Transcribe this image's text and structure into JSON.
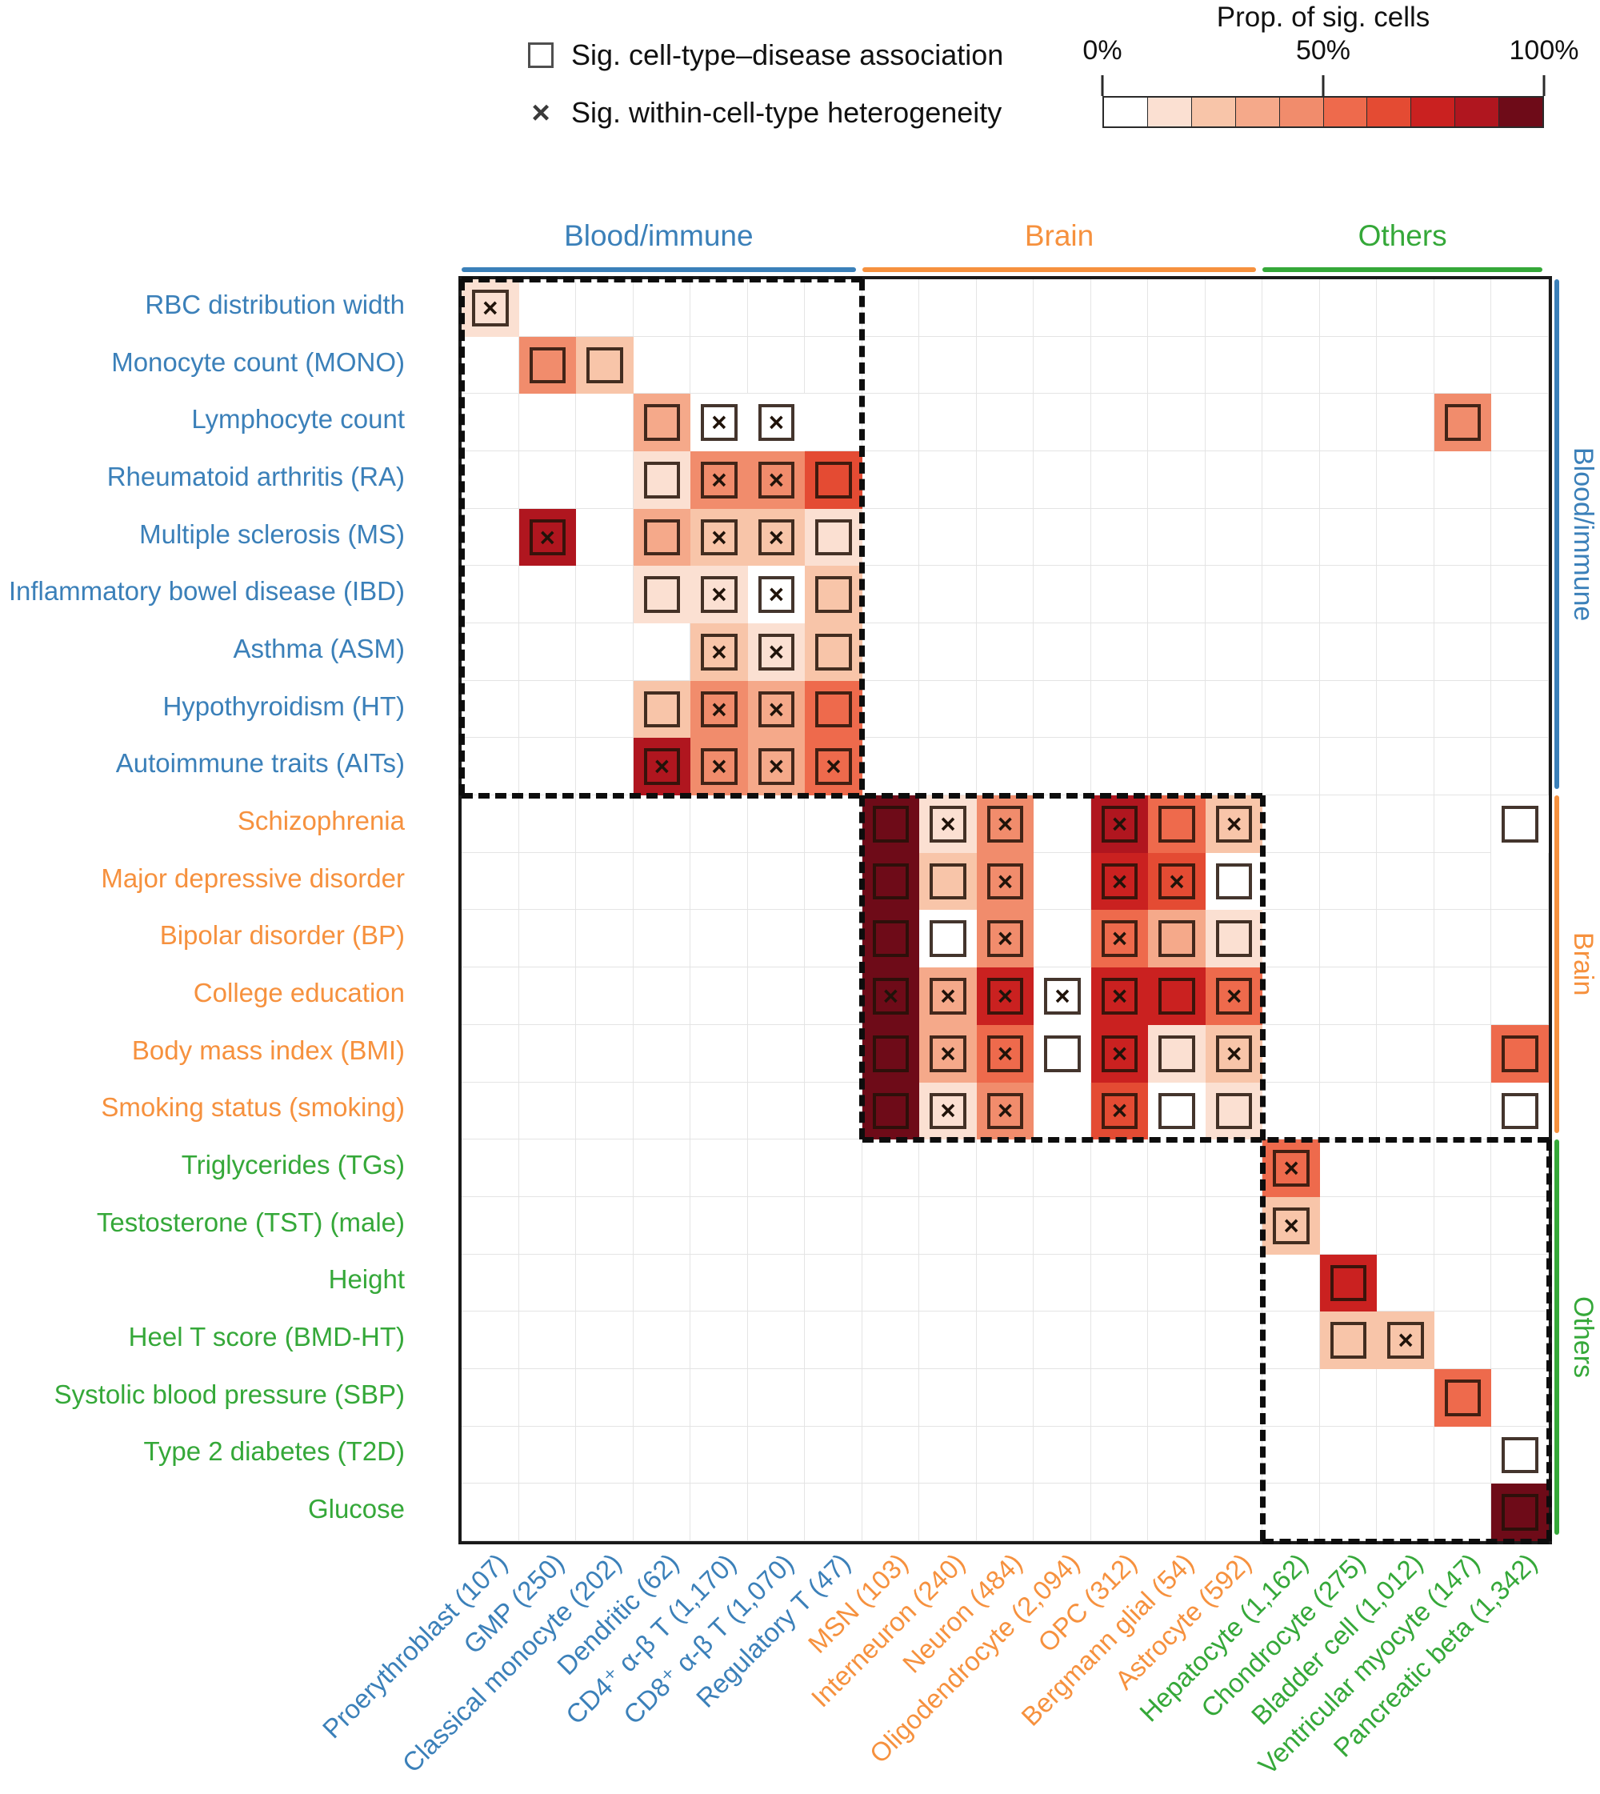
{
  "legend": {
    "square_symbol": "□",
    "cross_symbol": "×",
    "assoc_label": "Sig. cell-type–disease association",
    "het_label": "Sig. within-cell-type heterogeneity"
  },
  "colorbar": {
    "title": "Prop. of sig. cells",
    "tick_labels": [
      "0%",
      "50%",
      "100%"
    ],
    "tick_positions": [
      0,
      50,
      100
    ],
    "palette": [
      "#ffffff",
      "#fbe0d2",
      "#f8c5a9",
      "#f5a98a",
      "#f18c6c",
      "#ee6a4c",
      "#e44b33",
      "#ca2120",
      "#b0161f",
      "#6e0b18"
    ]
  },
  "groups": {
    "blood": {
      "label": "Blood/immune",
      "color": "#3b80b9"
    },
    "brain": {
      "label": "Brain",
      "color": "#f6913e"
    },
    "others": {
      "label": "Others",
      "color": "#35a839"
    }
  },
  "chart_data": {
    "type": "heatmap",
    "value_meaning": "Proportion of significant cells (%), square = significant cell-type-disease association, x = significant within-cell-type heterogeneity",
    "rows": [
      {
        "label": "RBC distribution width",
        "group": "blood"
      },
      {
        "label": "Monocyte count (MONO)",
        "group": "blood"
      },
      {
        "label": "Lymphocyte count",
        "group": "blood"
      },
      {
        "label": "Rheumatoid arthritis (RA)",
        "group": "blood"
      },
      {
        "label": "Multiple sclerosis (MS)",
        "group": "blood"
      },
      {
        "label": "Inflammatory bowel disease (IBD)",
        "group": "blood"
      },
      {
        "label": "Asthma (ASM)",
        "group": "blood"
      },
      {
        "label": "Hypothyroidism (HT)",
        "group": "blood"
      },
      {
        "label": "Autoimmune traits (AITs)",
        "group": "blood"
      },
      {
        "label": "Schizophrenia",
        "group": "brain"
      },
      {
        "label": "Major depressive disorder",
        "group": "brain"
      },
      {
        "label": "Bipolar disorder (BP)",
        "group": "brain"
      },
      {
        "label": "College education",
        "group": "brain"
      },
      {
        "label": "Body mass index (BMI)",
        "group": "brain"
      },
      {
        "label": "Smoking status (smoking)",
        "group": "brain"
      },
      {
        "label": "Triglycerides (TGs)",
        "group": "others"
      },
      {
        "label": "Testosterone (TST) (male)",
        "group": "others"
      },
      {
        "label": "Height",
        "group": "others"
      },
      {
        "label": "Heel T score (BMD-HT)",
        "group": "others"
      },
      {
        "label": "Systolic blood pressure (SBP)",
        "group": "others"
      },
      {
        "label": "Type 2 diabetes (T2D)",
        "group": "others"
      },
      {
        "label": "Glucose",
        "group": "others"
      }
    ],
    "cols": [
      {
        "label": "Proerythroblast (107)",
        "group": "blood"
      },
      {
        "label": "GMP (250)",
        "group": "blood"
      },
      {
        "label": "Classical monocyte (202)",
        "group": "blood"
      },
      {
        "label": "Dendritic (62)",
        "group": "blood"
      },
      {
        "label": "CD4⁺ α-β T (1,170)",
        "group": "blood"
      },
      {
        "label": "CD8⁺ α-β T (1,070)",
        "group": "blood"
      },
      {
        "label": "Regulatory T (47)",
        "group": "blood"
      },
      {
        "label": "MSN (103)",
        "group": "brain"
      },
      {
        "label": "Interneuron (240)",
        "group": "brain"
      },
      {
        "label": "Neuron (484)",
        "group": "brain"
      },
      {
        "label": "Oligodendrocyte (2,094)",
        "group": "brain"
      },
      {
        "label": "OPC (312)",
        "group": "brain"
      },
      {
        "label": "Bergmann glial (54)",
        "group": "brain"
      },
      {
        "label": "Astrocyte (592)",
        "group": "brain"
      },
      {
        "label": "Hepatocyte (1,162)",
        "group": "others"
      },
      {
        "label": "Chondrocyte (275)",
        "group": "others"
      },
      {
        "label": "Bladder cell (1,012)",
        "group": "others"
      },
      {
        "label": "Ventricular myocyte (147)",
        "group": "others"
      },
      {
        "label": "Pancreatic beta (1,342)",
        "group": "others"
      }
    ],
    "cells": [
      {
        "r": 0,
        "c": 0,
        "p": 15,
        "sq": true,
        "x": true
      },
      {
        "r": 1,
        "c": 1,
        "p": 45,
        "sq": true
      },
      {
        "r": 1,
        "c": 2,
        "p": 25,
        "sq": true
      },
      {
        "r": 2,
        "c": 3,
        "p": 35,
        "sq": true
      },
      {
        "r": 2,
        "c": 4,
        "p": 5,
        "sq": true,
        "x": true
      },
      {
        "r": 2,
        "c": 5,
        "p": 5,
        "sq": true,
        "x": true
      },
      {
        "r": 2,
        "c": 17,
        "p": 45,
        "sq": true
      },
      {
        "r": 3,
        "c": 3,
        "p": 15,
        "sq": true
      },
      {
        "r": 3,
        "c": 4,
        "p": 45,
        "sq": true,
        "x": true
      },
      {
        "r": 3,
        "c": 5,
        "p": 45,
        "sq": true,
        "x": true
      },
      {
        "r": 3,
        "c": 6,
        "p": 65,
        "sq": true
      },
      {
        "r": 4,
        "c": 1,
        "p": 85,
        "sq": true,
        "x": true
      },
      {
        "r": 4,
        "c": 3,
        "p": 35,
        "sq": true
      },
      {
        "r": 4,
        "c": 4,
        "p": 25,
        "sq": true,
        "x": true
      },
      {
        "r": 4,
        "c": 5,
        "p": 25,
        "sq": true,
        "x": true
      },
      {
        "r": 4,
        "c": 6,
        "p": 15,
        "sq": true
      },
      {
        "r": 5,
        "c": 3,
        "p": 15,
        "sq": true
      },
      {
        "r": 5,
        "c": 4,
        "p": 15,
        "sq": true,
        "x": true
      },
      {
        "r": 5,
        "c": 5,
        "p": 5,
        "sq": true,
        "x": true
      },
      {
        "r": 5,
        "c": 6,
        "p": 25,
        "sq": true
      },
      {
        "r": 6,
        "c": 4,
        "p": 25,
        "sq": true,
        "x": true
      },
      {
        "r": 6,
        "c": 5,
        "p": 15,
        "sq": true,
        "x": true
      },
      {
        "r": 6,
        "c": 6,
        "p": 25,
        "sq": true
      },
      {
        "r": 7,
        "c": 3,
        "p": 25,
        "sq": true
      },
      {
        "r": 7,
        "c": 4,
        "p": 45,
        "sq": true,
        "x": true
      },
      {
        "r": 7,
        "c": 5,
        "p": 35,
        "sq": true,
        "x": true
      },
      {
        "r": 7,
        "c": 6,
        "p": 55,
        "sq": true
      },
      {
        "r": 8,
        "c": 3,
        "p": 85,
        "sq": true,
        "x": true
      },
      {
        "r": 8,
        "c": 4,
        "p": 45,
        "sq": true,
        "x": true
      },
      {
        "r": 8,
        "c": 5,
        "p": 35,
        "sq": true,
        "x": true
      },
      {
        "r": 8,
        "c": 6,
        "p": 55,
        "sq": true,
        "x": true
      },
      {
        "r": 9,
        "c": 7,
        "p": 95,
        "sq": true
      },
      {
        "r": 9,
        "c": 8,
        "p": 15,
        "sq": true,
        "x": true
      },
      {
        "r": 9,
        "c": 9,
        "p": 45,
        "sq": true,
        "x": true
      },
      {
        "r": 9,
        "c": 11,
        "p": 85,
        "sq": true,
        "x": true
      },
      {
        "r": 9,
        "c": 12,
        "p": 55,
        "sq": true
      },
      {
        "r": 9,
        "c": 13,
        "p": 25,
        "sq": true,
        "x": true
      },
      {
        "r": 9,
        "c": 18,
        "p": 5,
        "sq": true
      },
      {
        "r": 10,
        "c": 7,
        "p": 95,
        "sq": true
      },
      {
        "r": 10,
        "c": 8,
        "p": 25,
        "sq": true
      },
      {
        "r": 10,
        "c": 9,
        "p": 45,
        "sq": true,
        "x": true
      },
      {
        "r": 10,
        "c": 11,
        "p": 75,
        "sq": true,
        "x": true
      },
      {
        "r": 10,
        "c": 12,
        "p": 65,
        "sq": true,
        "x": true
      },
      {
        "r": 10,
        "c": 13,
        "p": 5,
        "sq": true
      },
      {
        "r": 11,
        "c": 7,
        "p": 95,
        "sq": true
      },
      {
        "r": 11,
        "c": 8,
        "p": 5,
        "sq": true
      },
      {
        "r": 11,
        "c": 9,
        "p": 45,
        "sq": true,
        "x": true
      },
      {
        "r": 11,
        "c": 11,
        "p": 55,
        "sq": true,
        "x": true
      },
      {
        "r": 11,
        "c": 12,
        "p": 35,
        "sq": true
      },
      {
        "r": 11,
        "c": 13,
        "p": 15,
        "sq": true
      },
      {
        "r": 12,
        "c": 7,
        "p": 95,
        "sq": true,
        "x": true
      },
      {
        "r": 12,
        "c": 8,
        "p": 35,
        "sq": true,
        "x": true
      },
      {
        "r": 12,
        "c": 9,
        "p": 75,
        "sq": true,
        "x": true
      },
      {
        "r": 12,
        "c": 10,
        "p": 5,
        "sq": true,
        "x": true
      },
      {
        "r": 12,
        "c": 11,
        "p": 75,
        "sq": true,
        "x": true
      },
      {
        "r": 12,
        "c": 12,
        "p": 75,
        "sq": true
      },
      {
        "r": 12,
        "c": 13,
        "p": 55,
        "sq": true,
        "x": true
      },
      {
        "r": 13,
        "c": 7,
        "p": 95,
        "sq": true
      },
      {
        "r": 13,
        "c": 8,
        "p": 35,
        "sq": true,
        "x": true
      },
      {
        "r": 13,
        "c": 9,
        "p": 55,
        "sq": true,
        "x": true
      },
      {
        "r": 13,
        "c": 10,
        "p": 5,
        "sq": true
      },
      {
        "r": 13,
        "c": 11,
        "p": 75,
        "sq": true,
        "x": true
      },
      {
        "r": 13,
        "c": 12,
        "p": 15,
        "sq": true
      },
      {
        "r": 13,
        "c": 13,
        "p": 25,
        "sq": true,
        "x": true
      },
      {
        "r": 13,
        "c": 18,
        "p": 55,
        "sq": true
      },
      {
        "r": 14,
        "c": 7,
        "p": 95,
        "sq": true
      },
      {
        "r": 14,
        "c": 8,
        "p": 15,
        "sq": true,
        "x": true
      },
      {
        "r": 14,
        "c": 9,
        "p": 45,
        "sq": true,
        "x": true
      },
      {
        "r": 14,
        "c": 11,
        "p": 65,
        "sq": true,
        "x": true
      },
      {
        "r": 14,
        "c": 12,
        "p": 5,
        "sq": true
      },
      {
        "r": 14,
        "c": 13,
        "p": 15,
        "sq": true
      },
      {
        "r": 14,
        "c": 18,
        "p": 5,
        "sq": true
      },
      {
        "r": 15,
        "c": 14,
        "p": 55,
        "sq": true,
        "x": true
      },
      {
        "r": 16,
        "c": 14,
        "p": 25,
        "sq": true,
        "x": true
      },
      {
        "r": 17,
        "c": 15,
        "p": 75,
        "sq": true
      },
      {
        "r": 18,
        "c": 15,
        "p": 25,
        "sq": true
      },
      {
        "r": 18,
        "c": 16,
        "p": 25,
        "sq": true,
        "x": true
      },
      {
        "r": 19,
        "c": 17,
        "p": 55,
        "sq": true
      },
      {
        "r": 20,
        "c": 18,
        "p": 5,
        "sq": true
      },
      {
        "r": 21,
        "c": 18,
        "p": 95,
        "sq": true
      }
    ],
    "blocks": [
      {
        "group": "blood",
        "row_start": 0,
        "row_end": 9,
        "col_start": 0,
        "col_end": 7
      },
      {
        "group": "brain",
        "row_start": 9,
        "row_end": 15,
        "col_start": 7,
        "col_end": 14
      },
      {
        "group": "others",
        "row_start": 15,
        "row_end": 22,
        "col_start": 14,
        "col_end": 19
      }
    ],
    "dividers": [
      {
        "o": "v",
        "at": 7,
        "from": 0,
        "to": 15
      },
      {
        "o": "v",
        "at": 14,
        "from": 9,
        "to": 22
      },
      {
        "o": "h",
        "at": 9,
        "from": 0,
        "to": 14
      },
      {
        "o": "h",
        "at": 15,
        "from": 7,
        "to": 19
      },
      {
        "o": "h",
        "at": 0,
        "from": 0,
        "to": 7
      },
      {
        "o": "v",
        "at": 0,
        "from": 0,
        "to": 9
      },
      {
        "o": "h",
        "at": 22,
        "from": 14,
        "to": 19
      },
      {
        "o": "v",
        "at": 19,
        "from": 15,
        "to": 22
      }
    ],
    "n_rows": 22,
    "n_cols": 19,
    "grid_on": true,
    "legend_position": "top"
  }
}
